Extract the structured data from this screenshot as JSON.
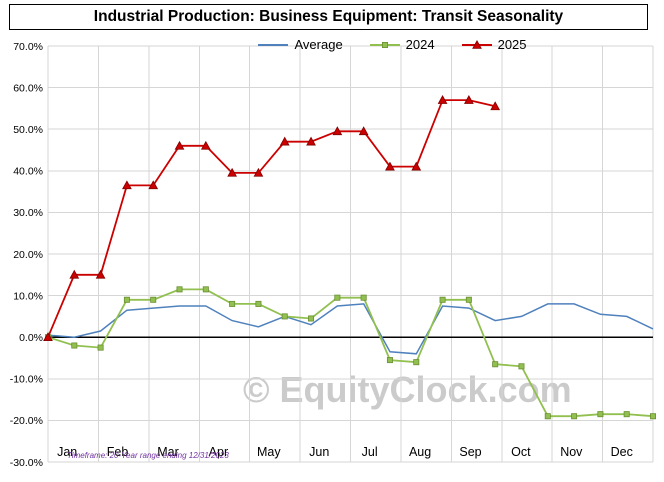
{
  "title": "Industrial Production: Business Equipment: Transit Seasonality",
  "watermark": "© EquityClock.com",
  "footnote": "Timeframe: 20-Year range ending 12/31/2023",
  "chart_data": {
    "type": "line",
    "title": "Industrial Production: Business Equipment: Transit Seasonality",
    "categories": [
      "Jan",
      "Feb",
      "Mar",
      "Apr",
      "May",
      "Jun",
      "Jul",
      "Aug",
      "Sep",
      "Oct",
      "Nov",
      "Dec"
    ],
    "points_per_month": 2,
    "ylim": [
      -30,
      70
    ],
    "ytick_step": 10,
    "yticks": [
      "70.0%",
      "60.0%",
      "50.0%",
      "40.0%",
      "30.0%",
      "20.0%",
      "10.0%",
      "0.0%",
      "-10.0%",
      "-20.0%",
      "-30.0%"
    ],
    "grid": true,
    "legend_position": "top-center",
    "series": [
      {
        "name": "Average",
        "color": "#4f81bd",
        "marker": "none",
        "values": [
          0.5,
          0.0,
          1.5,
          6.5,
          7.0,
          7.5,
          7.5,
          4.0,
          2.5,
          5.0,
          3.0,
          7.5,
          8.0,
          -3.5,
          -4.0,
          7.5,
          7.0,
          4.0,
          5.0,
          8.0,
          8.0,
          5.5,
          5.0,
          2.0
        ]
      },
      {
        "name": "2024",
        "color": "#92c050",
        "marker": "square",
        "marker_border": "#6a8f33",
        "values": [
          0.0,
          -2.0,
          -2.5,
          9.0,
          9.0,
          11.5,
          11.5,
          8.0,
          8.0,
          5.0,
          4.5,
          9.5,
          9.5,
          -5.5,
          -6.0,
          9.0,
          9.0,
          -6.5,
          -7.0,
          -19.0,
          -19.0,
          -18.5,
          -18.5,
          -19.0
        ]
      },
      {
        "name": "2025",
        "color": "#cc0000",
        "marker": "triangle",
        "marker_border": "#7f0000",
        "values": [
          0.0,
          15.0,
          15.0,
          36.5,
          36.5,
          46.0,
          46.0,
          39.5,
          39.5,
          47.0,
          47.0,
          49.5,
          49.5,
          41.0,
          41.0,
          57.0,
          57.0,
          55.5
        ]
      }
    ]
  }
}
